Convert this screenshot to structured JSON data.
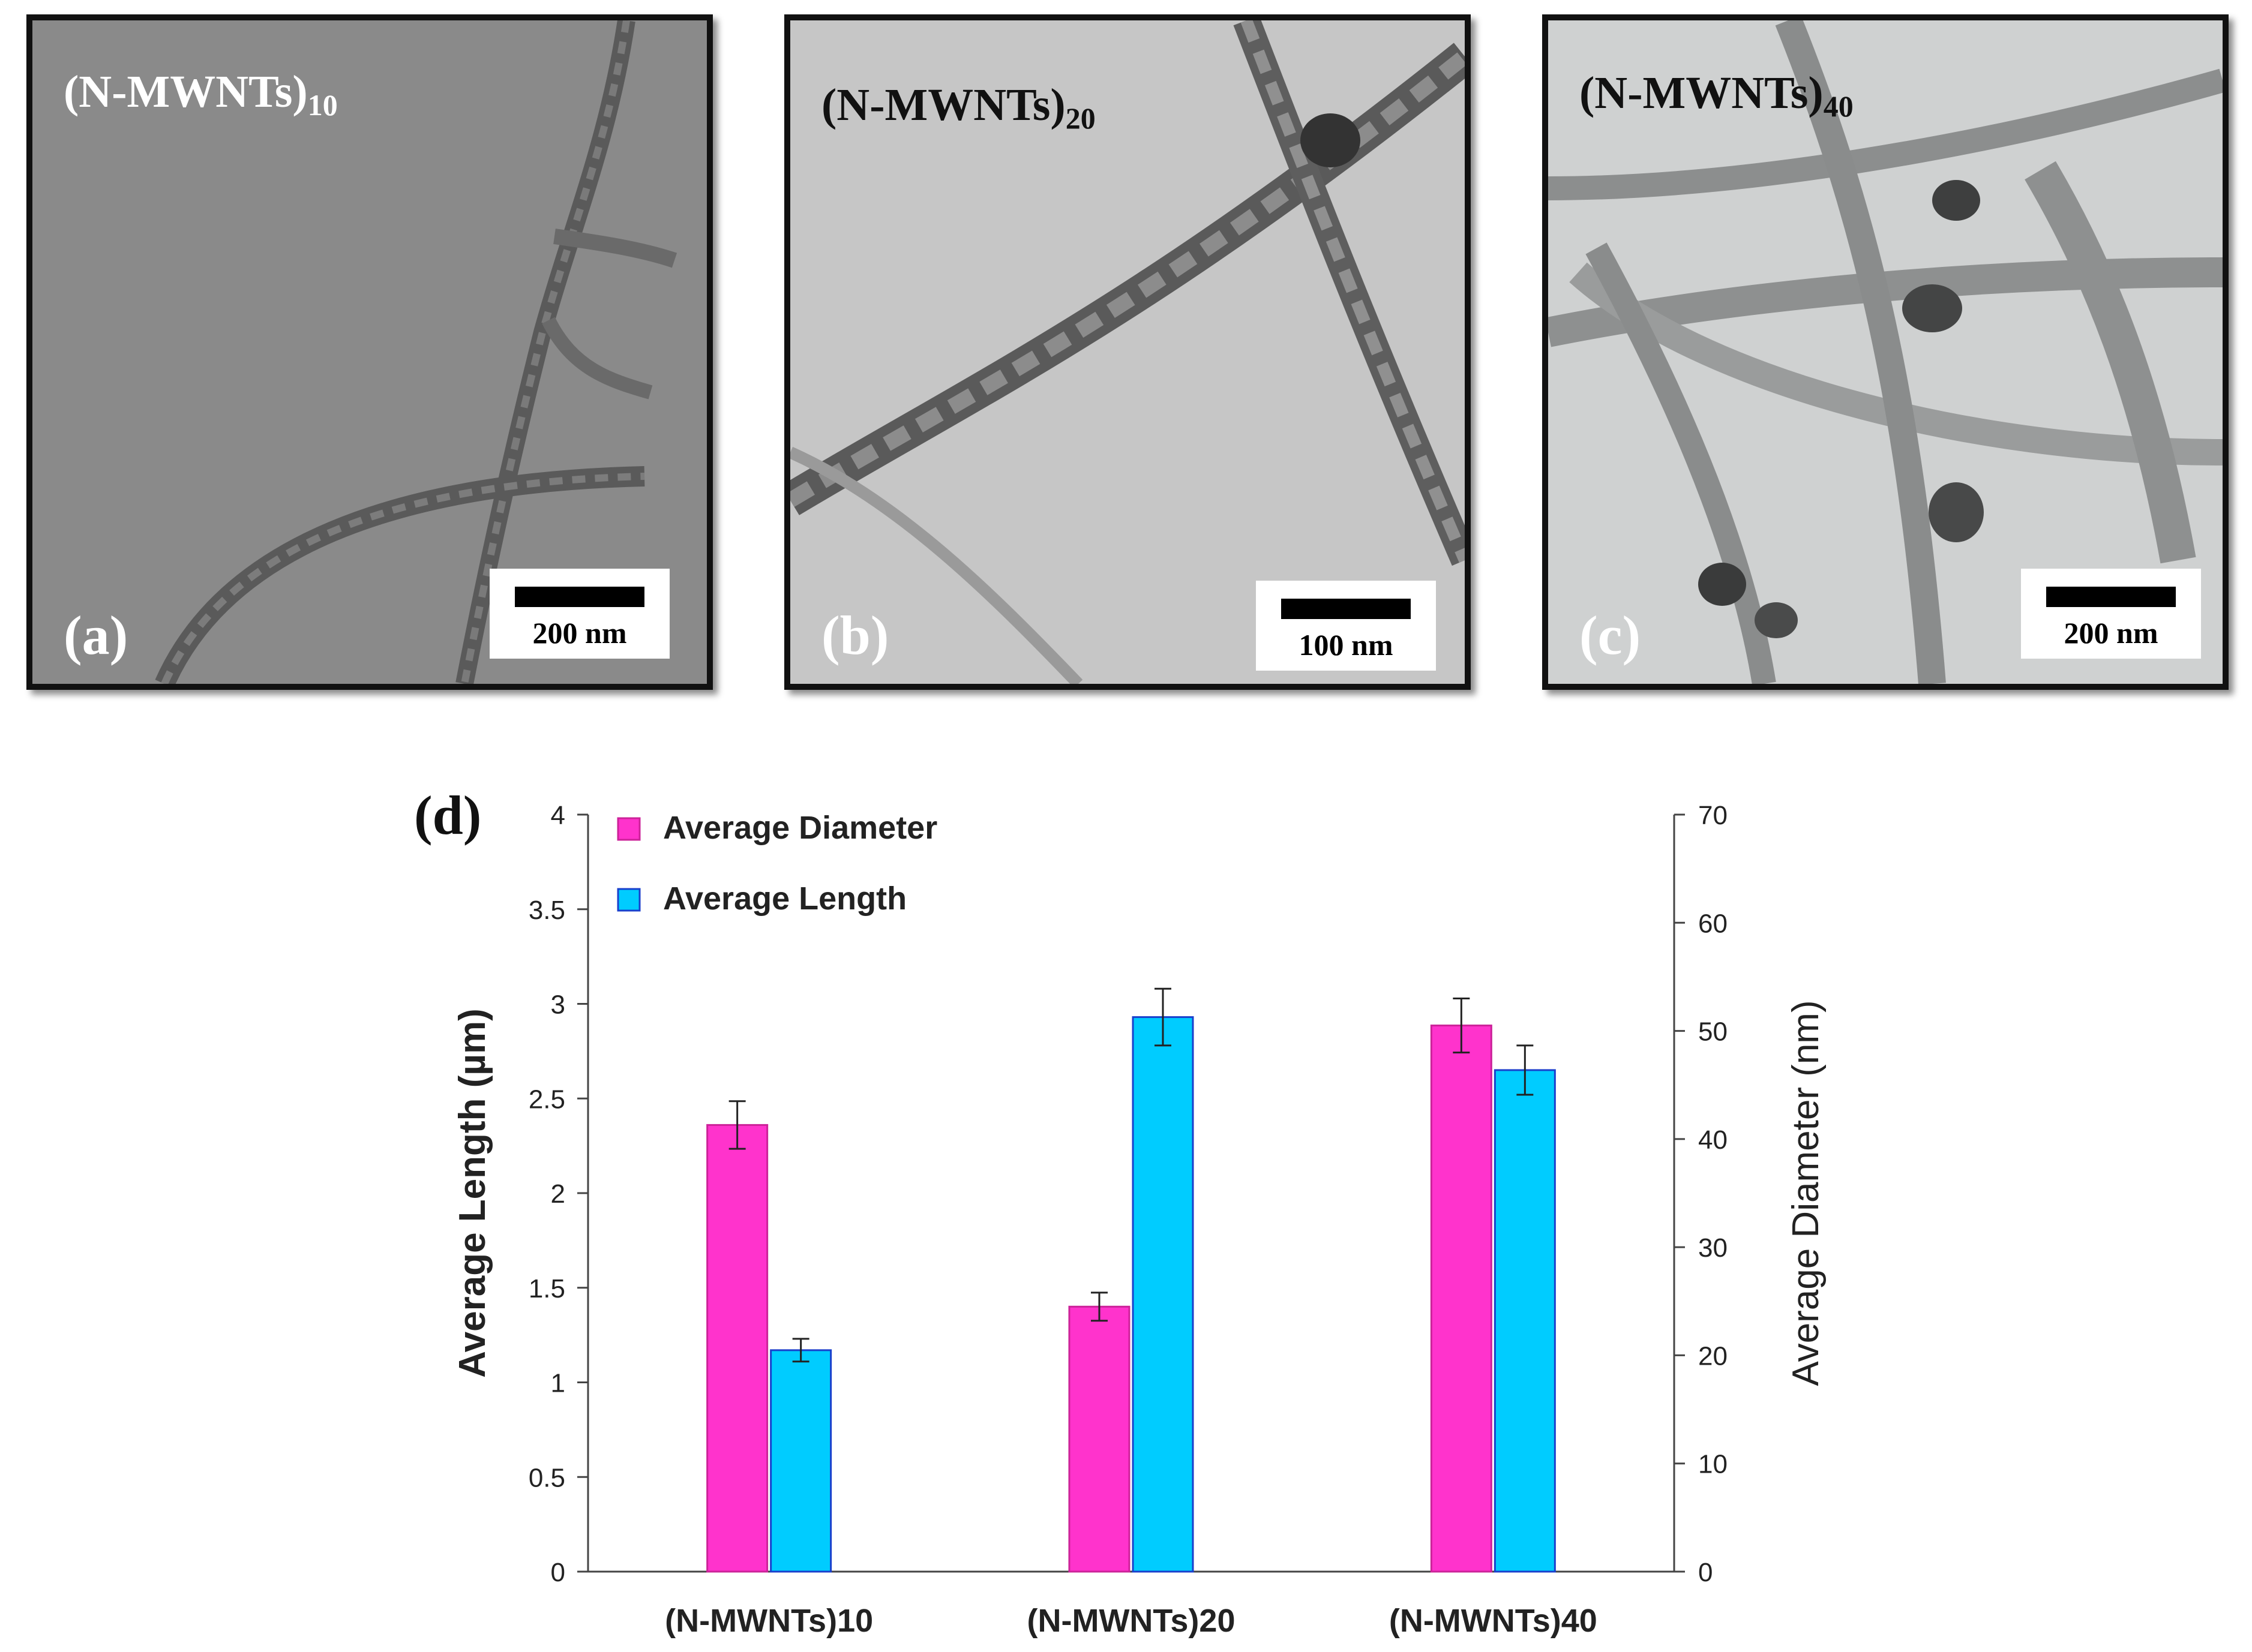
{
  "panels": [
    {
      "sample_main": "(N-MWNTs)",
      "sample_sub": "10",
      "letter": "(a)",
      "scale": "200 nm"
    },
    {
      "sample_main": "(N-MWNTs)",
      "sample_sub": "20",
      "letter": "(b)",
      "scale": "100 nm"
    },
    {
      "sample_main": "(N-MWNTs)",
      "sample_sub": "40",
      "letter": "(c)",
      "scale": "200 nm"
    }
  ],
  "colors": {
    "diameter": "#ff33cc",
    "length": "#00ccff",
    "bar_border_d": "#cc2299",
    "bar_border_l": "#1a3fcc"
  },
  "chart_data": {
    "type": "bar",
    "panel_label": "(d)",
    "categories": [
      "(N-MWNTs)10",
      "(N-MWNTs)20",
      "(N-MWNTs)40"
    ],
    "series": [
      {
        "name": "Average Diameter",
        "axis": "right",
        "values": [
          41.3,
          24.5,
          50.5
        ],
        "errors": [
          2.2,
          1.3,
          2.5
        ]
      },
      {
        "name": "Average Length",
        "axis": "left",
        "values": [
          1.17,
          2.93,
          2.65
        ],
        "errors": [
          0.06,
          0.15,
          0.13
        ]
      }
    ],
    "ylabel_left": "Average Length (µm)",
    "ylabel_right": "Average Diameter (nm)",
    "ylim_left": [
      0,
      4
    ],
    "ylim_right": [
      0,
      70
    ],
    "yticks_left": [
      "0",
      "0.5",
      "1",
      "1.5",
      "2",
      "2.5",
      "3",
      "3.5",
      "4"
    ],
    "yticks_right": [
      "0",
      "10",
      "20",
      "30",
      "40",
      "50",
      "60",
      "70"
    ],
    "legend": [
      "Average Diameter",
      "Average Length"
    ],
    "legend_position": "top-left"
  }
}
